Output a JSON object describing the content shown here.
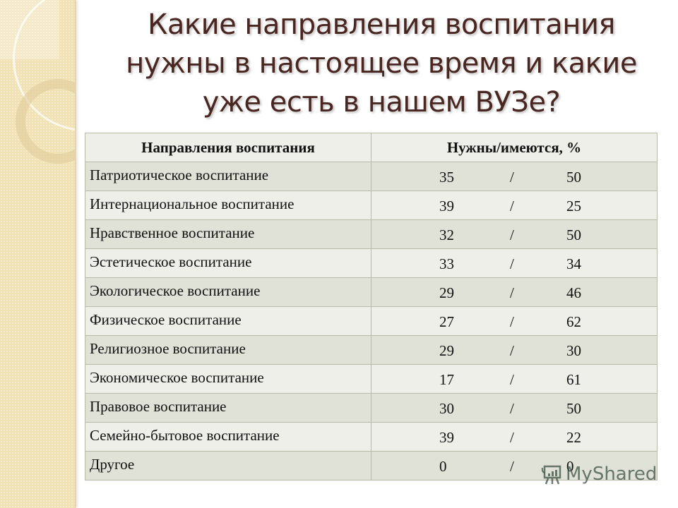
{
  "title": "Какие направления воспитания нужны в настоящее время и какие уже есть в нашем ВУЗе?",
  "table": {
    "headers": [
      "Направления воспитания",
      "Нужны/имеются, %"
    ],
    "rows": [
      {
        "name": "Патриотическое воспитание",
        "need": "35",
        "have": "50"
      },
      {
        "name": "Интернациональное воспитание",
        "need": "39",
        "have": "25"
      },
      {
        "name": "Нравственное воспитание",
        "need": "32",
        "have": "50"
      },
      {
        "name": "Эстетическое воспитание",
        "need": "33",
        "have": "34"
      },
      {
        "name": "Экологическое воспитание",
        "need": "29",
        "have": "46"
      },
      {
        "name": "Физическое воспитание",
        "need": "27",
        "have": "62"
      },
      {
        "name": "Религиозное воспитание",
        "need": "29",
        "have": "30"
      },
      {
        "name": "Экономическое воспитание",
        "need": "17",
        "have": "61"
      },
      {
        "name": "Правовое воспитание",
        "need": "30",
        "have": "50"
      },
      {
        "name": "Семейно-бытовое воспитание",
        "need": "39",
        "have": "22"
      },
      {
        "name": "Другое",
        "need": "0",
        "have": "0"
      }
    ],
    "separator": "/"
  },
  "watermark": {
    "text": "MyShared",
    "icon": "presentation-board-icon"
  },
  "colors": {
    "title": "#4a2620",
    "side_panel": "#f1e2b6",
    "row_odd": "#e0e1d7",
    "row_even": "#efefea",
    "border": "#b8bba8"
  }
}
